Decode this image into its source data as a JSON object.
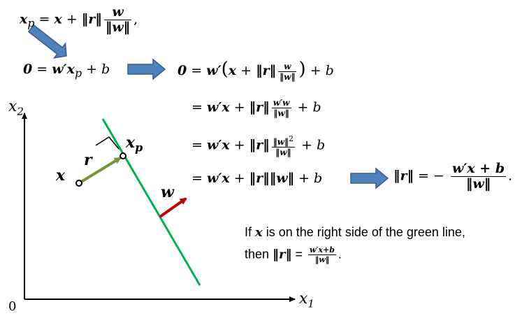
{
  "equations": {
    "xp_def": {
      "lhs": "x",
      "lhs_sub": "p",
      "eq": " = ",
      "x": "x",
      "plus": " + ",
      "norm_r": "‖r‖",
      "frac_num": "w",
      "frac_den": "‖w‖",
      "tail": ","
    },
    "plane_eq": {
      "zero": "0",
      "eq": " = ",
      "w": "w′",
      "x": "x",
      "sub": "p",
      "plus_b": " + b"
    },
    "step1": {
      "zero": "0",
      "eq": " = ",
      "w": "w′",
      "open": "(",
      "x": "x",
      "plus": " + ",
      "norm_r": "‖r‖",
      "frac_num": "w",
      "frac_den": "‖w‖",
      "close": ")",
      "plus_b": " + b"
    },
    "step2": {
      "eq": "= ",
      "w": "w′",
      "x": "x",
      "plus": " + ",
      "norm_r": "‖r‖",
      "frac_num": "w′w",
      "frac_den": "‖w‖",
      "plus_b": " + b"
    },
    "step3": {
      "eq": "= ",
      "w": "w′",
      "x": "x",
      "plus": " + ",
      "norm_r": "‖r‖",
      "frac_num": "‖w‖",
      "frac_num_sup": "2",
      "frac_den": "‖w‖",
      "plus_b": " + b"
    },
    "step4": {
      "eq": "= ",
      "w": "w′",
      "x": "x",
      "plus": " + ",
      "norm_r": "‖r‖",
      "norm_w": "‖w‖",
      "plus_b": " + b"
    },
    "result": {
      "norm_r": "‖r‖",
      "eq": " = − ",
      "frac_num": "w′x + b",
      "frac_den": "‖w‖",
      "tail": "."
    }
  },
  "axes": {
    "y_label": "x",
    "y_sub": "2",
    "x_label": "x",
    "x_sub": "1",
    "origin": "0"
  },
  "diagram_labels": {
    "point_x": "x",
    "point_xp": "x",
    "point_xp_sub": "p",
    "vector_r": "r",
    "vector_w": "w"
  },
  "note": {
    "line1_a": "If ",
    "line1_x": "x",
    "line1_b": " is on the right side of the green line,",
    "line2_a": "then ",
    "line2_norm": "‖r‖",
    "line2_eq": " = ",
    "frac_num": "w′x+b",
    "frac_den": "‖w‖",
    "tail": "."
  },
  "colors": {
    "green_line": "#00b050",
    "vector_r": "#77933c",
    "vector_w": "#c00000",
    "block_arrow_fill": "#4f81bd",
    "block_arrow_stroke": "#385d8a"
  }
}
